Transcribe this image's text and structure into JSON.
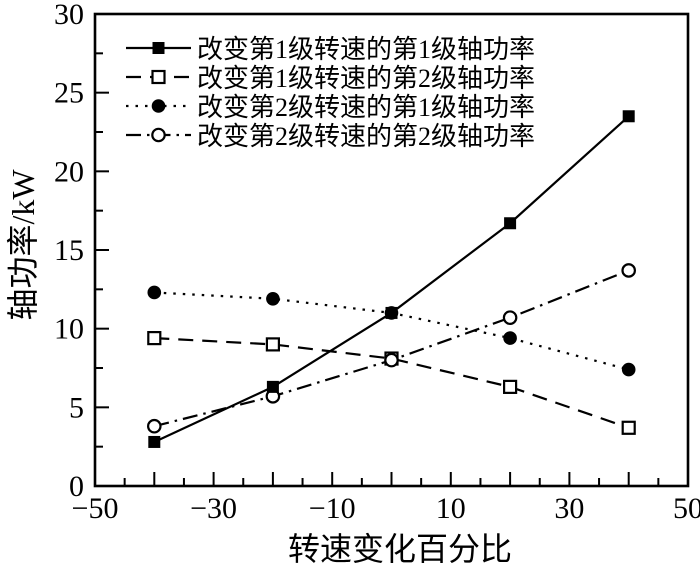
{
  "figure": {
    "background_color": "#ffffff",
    "ink_color": "#000000"
  },
  "chart_data": {
    "type": "line",
    "title": "",
    "xlabel": "转速变化百分比",
    "ylabel": "轴功率/kW",
    "xlim": [
      -50,
      50
    ],
    "ylim": [
      0,
      30
    ],
    "grid": false,
    "legend_position": "top-left-inside",
    "x_minor_tick_step": 5,
    "x_major_tick_step": 10,
    "y_minor_tick_step": 2.5,
    "y_major_tick_step": 5,
    "x_tick_labels": [
      {
        "value": -50,
        "label": "−50"
      },
      {
        "value": -30,
        "label": "−30"
      },
      {
        "value": -10,
        "label": "−10"
      },
      {
        "value": 10,
        "label": "10"
      },
      {
        "value": 30,
        "label": "30"
      },
      {
        "value": 50,
        "label": "50"
      }
    ],
    "y_tick_labels": [
      {
        "value": 0,
        "label": "0"
      },
      {
        "value": 5,
        "label": "5"
      },
      {
        "value": 10,
        "label": "10"
      },
      {
        "value": 15,
        "label": "15"
      },
      {
        "value": 20,
        "label": "20"
      },
      {
        "value": 25,
        "label": "25"
      },
      {
        "value": 30,
        "label": "30"
      }
    ],
    "x": [
      -40,
      -20,
      0,
      20,
      40
    ],
    "series": [
      {
        "name": "改变第1级转速的第1级轴功率",
        "line_style": "solid",
        "marker": "filled-square",
        "values": [
          2.8,
          6.3,
          11.0,
          16.7,
          23.5
        ]
      },
      {
        "name": "改变第1级转速的第2级轴功率",
        "line_style": "dashed",
        "marker": "open-square",
        "values": [
          9.4,
          9.0,
          8.1,
          6.3,
          3.7
        ]
      },
      {
        "name": "改变第2级转速的第1级轴功率",
        "line_style": "dotted",
        "marker": "filled-circle",
        "values": [
          12.3,
          11.9,
          11.0,
          9.4,
          7.4
        ]
      },
      {
        "name": "改变第2级转速的第2级轴功率",
        "line_style": "dashdot",
        "marker": "open-circle",
        "values": [
          3.8,
          5.7,
          8.0,
          10.7,
          13.7
        ]
      }
    ]
  }
}
